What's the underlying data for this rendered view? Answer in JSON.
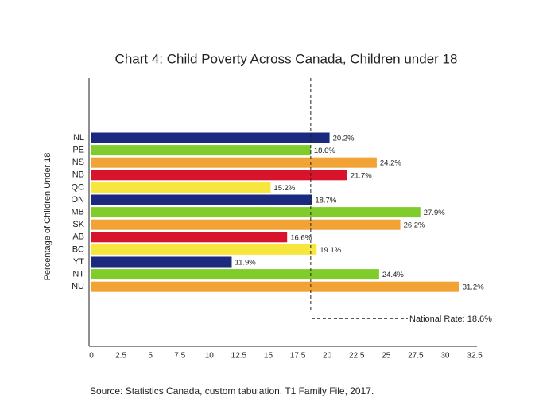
{
  "chart_data": {
    "type": "hbar",
    "title": "Chart 4: Child Poverty Across Canada, Children under 18",
    "y_label": "Percentage of Children Under 18",
    "source": "Source: Statistics Canada, custom tabulation. T1 Family File, 2017.",
    "categories": [
      "NL",
      "PE",
      "NS",
      "NB",
      "QC",
      "ON",
      "MB",
      "SK",
      "AB",
      "BC",
      "YT",
      "NT",
      "NU"
    ],
    "values": [
      20.2,
      18.6,
      24.2,
      21.7,
      15.2,
      18.7,
      27.9,
      26.2,
      16.6,
      19.1,
      11.9,
      24.4,
      31.2
    ],
    "value_labels": [
      "20.2%",
      "18.6%",
      "24.2%",
      "21.7%",
      "15.2%",
      "18.7%",
      "27.9%",
      "26.2%",
      "16.6%",
      "19.1%",
      "11.9%",
      "24.4%",
      "31.2%"
    ],
    "colors": [
      "#1b2a7f",
      "#7fcc2a",
      "#f2a335",
      "#d8142c",
      "#f7e63d",
      "#1b2a7f",
      "#7fcc2a",
      "#f2a335",
      "#d8142c",
      "#f7e63d",
      "#1b2a7f",
      "#7fcc2a",
      "#f2a335"
    ],
    "xlim": [
      0,
      32.5
    ],
    "xticks": [
      0,
      2.5,
      5,
      7.5,
      10,
      12.5,
      15,
      17.5,
      20,
      22.5,
      25,
      27.5,
      30,
      32.5
    ],
    "annotation": {
      "value": 18.6,
      "label": "National Rate: 18.6%"
    }
  }
}
